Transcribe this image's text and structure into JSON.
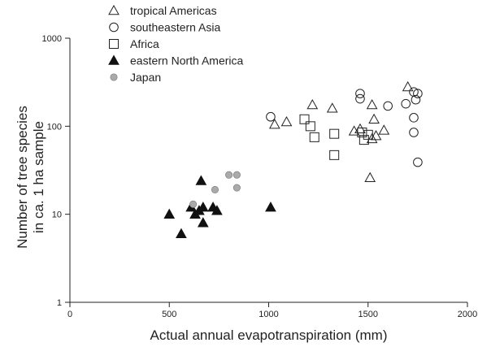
{
  "chart_data": {
    "type": "scatter",
    "xlabel": "Actual annual evapotranspiration (mm)",
    "ylabel_lines": [
      "Number of tree species",
      "in ca. 1 ha sample"
    ],
    "x_ticks": [
      "0",
      "500",
      "1000",
      "1500",
      "2000"
    ],
    "x_tick_values": [
      0,
      500,
      1000,
      1500,
      2000
    ],
    "y_ticks": [
      "1",
      "10",
      "100",
      "1000"
    ],
    "y_tick_values": [
      1,
      10,
      100,
      1000
    ],
    "xlim": [
      0,
      2000
    ],
    "ylim": [
      1,
      1000
    ],
    "y_scale": "log",
    "grid": false,
    "legend_position": "top-left outside",
    "series": [
      {
        "name": "tropical Americas",
        "marker": "triangle-open",
        "color": "#222222",
        "points": [
          [
            1030,
            105
          ],
          [
            1090,
            112
          ],
          [
            1220,
            175
          ],
          [
            1320,
            160
          ],
          [
            1430,
            88
          ],
          [
            1460,
            93
          ],
          [
            1520,
            175
          ],
          [
            1530,
            120
          ],
          [
            1580,
            90
          ],
          [
            1520,
            72
          ],
          [
            1540,
            78
          ],
          [
            1700,
            280
          ],
          [
            1510,
            26
          ]
        ]
      },
      {
        "name": "southeastern Asia",
        "marker": "circle-open",
        "color": "#222222",
        "points": [
          [
            1010,
            128
          ],
          [
            1460,
            235
          ],
          [
            1460,
            205
          ],
          [
            1600,
            170
          ],
          [
            1690,
            180
          ],
          [
            1730,
            245
          ],
          [
            1750,
            235
          ],
          [
            1740,
            200
          ],
          [
            1730,
            125
          ],
          [
            1730,
            85
          ],
          [
            1750,
            39
          ]
        ]
      },
      {
        "name": "Africa",
        "marker": "square-open",
        "color": "#222222",
        "points": [
          [
            1180,
            120
          ],
          [
            1210,
            100
          ],
          [
            1230,
            75
          ],
          [
            1330,
            82
          ],
          [
            1330,
            47
          ],
          [
            1470,
            85
          ],
          [
            1480,
            70
          ],
          [
            1500,
            80
          ]
        ]
      },
      {
        "name": "eastern North America",
        "marker": "triangle-filled",
        "color": "#111111",
        "points": [
          [
            500,
            10
          ],
          [
            560,
            6
          ],
          [
            610,
            12
          ],
          [
            630,
            10
          ],
          [
            650,
            11
          ],
          [
            660,
            24
          ],
          [
            670,
            12
          ],
          [
            670,
            8
          ],
          [
            720,
            12
          ],
          [
            740,
            11
          ],
          [
            1010,
            12
          ]
        ]
      },
      {
        "name": "Japan",
        "marker": "circle-filled-gray",
        "color": "#aaaaaa",
        "points": [
          [
            620,
            13
          ],
          [
            730,
            19
          ],
          [
            800,
            28
          ],
          [
            840,
            20
          ],
          [
            840,
            28
          ]
        ]
      }
    ]
  }
}
